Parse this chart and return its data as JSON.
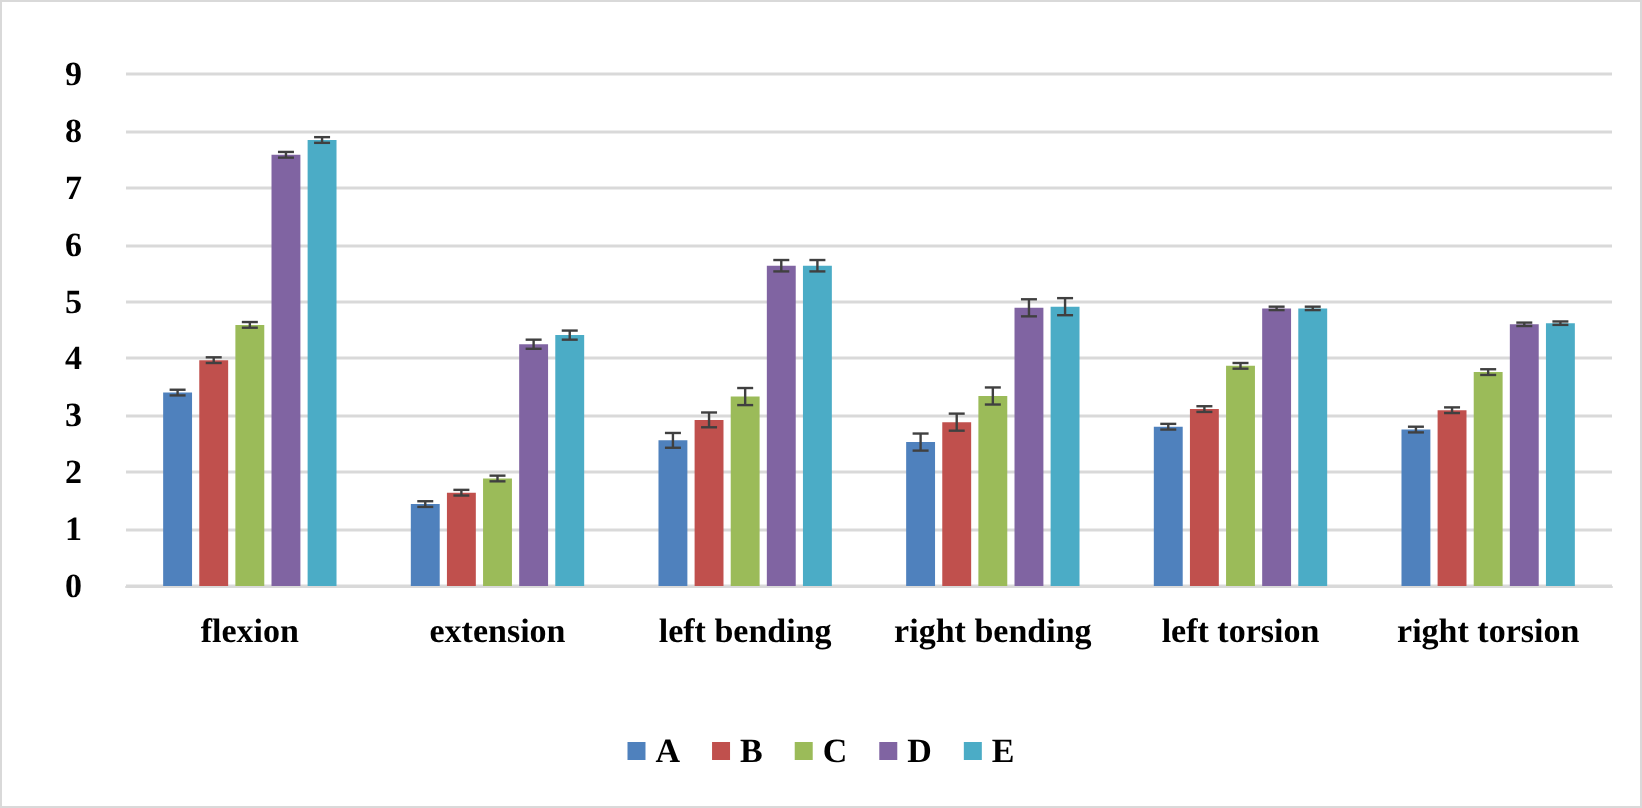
{
  "chart_data": {
    "type": "bar",
    "categories": [
      "flexion",
      "extension",
      "left bending",
      "right bending",
      "left torsion",
      "right torsion"
    ],
    "series": [
      {
        "name": "A",
        "color": "#4f81bd",
        "values": [
          3.4,
          1.44,
          2.56,
          2.53,
          2.8,
          2.75
        ],
        "errors": [
          0.05,
          0.05,
          0.13,
          0.15,
          0.05,
          0.05
        ]
      },
      {
        "name": "B",
        "color": "#c0504d",
        "values": [
          3.97,
          1.64,
          2.92,
          2.88,
          3.11,
          3.09
        ],
        "errors": [
          0.05,
          0.05,
          0.13,
          0.15,
          0.05,
          0.05
        ]
      },
      {
        "name": "C",
        "color": "#9bbb59",
        "values": [
          4.59,
          1.89,
          3.33,
          3.34,
          3.87,
          3.76
        ],
        "errors": [
          0.05,
          0.05,
          0.15,
          0.15,
          0.05,
          0.05
        ]
      },
      {
        "name": "D",
        "color": "#8064a2",
        "values": [
          7.58,
          4.25,
          5.63,
          4.89,
          4.88,
          4.6
        ],
        "errors": [
          0.05,
          0.08,
          0.1,
          0.15,
          0.03,
          0.03
        ]
      },
      {
        "name": "E",
        "color": "#4bacc6",
        "values": [
          7.84,
          4.41,
          5.63,
          4.91,
          4.88,
          4.62
        ],
        "errors": [
          0.05,
          0.08,
          0.1,
          0.15,
          0.03,
          0.03
        ]
      }
    ],
    "ylim": [
      0,
      9
    ],
    "yticks": [
      0,
      1,
      2,
      3,
      4,
      5,
      6,
      7,
      8,
      9
    ],
    "grid": "y",
    "legend": "bottom"
  }
}
